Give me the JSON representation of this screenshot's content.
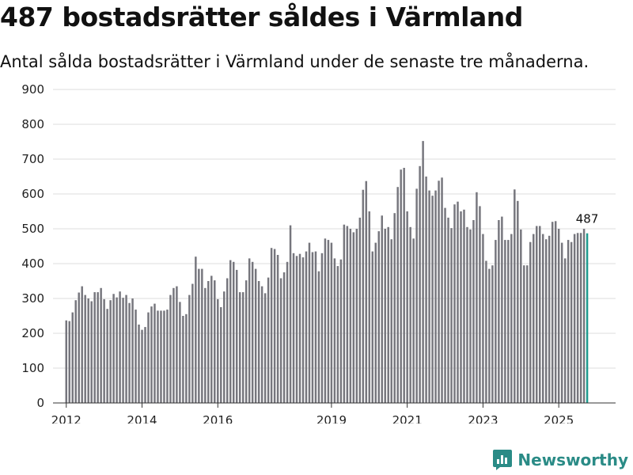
{
  "header": {
    "title": "487 bostadsrätter såldes i Värmland",
    "subtitle": "Antal sålda bostadsrätter i Värmland under de senaste tre månaderna."
  },
  "brand": {
    "name": "Newsworthy",
    "color": "#2a8b86"
  },
  "colors": {
    "bar": "#76767d",
    "highlight": "#1e9a8e",
    "grid": "#dddddd",
    "axis": "#333333"
  },
  "chart_data": {
    "type": "bar",
    "title": "487 bostadsrätter såldes i Värmland",
    "subtitle": "Antal sålda bostadsrätter i Värmland under de senaste tre månaderna.",
    "xlabel": "",
    "ylabel": "",
    "ylim": [
      0,
      900
    ],
    "yticks": [
      0,
      100,
      200,
      300,
      400,
      500,
      600,
      700,
      800,
      900
    ],
    "grid": true,
    "x_start": 2012.0,
    "step": 0.0833333,
    "xlim": [
      2011.65,
      2026.5
    ],
    "xticks": [
      2012,
      2014,
      2016,
      2019,
      2021,
      2023,
      2025
    ],
    "highlight_label": "487",
    "values": [
      237,
      235,
      260,
      295,
      317,
      335,
      310,
      300,
      292,
      318,
      318,
      330,
      298,
      270,
      295,
      313,
      303,
      320,
      302,
      310,
      287,
      300,
      268,
      225,
      210,
      218,
      260,
      277,
      285,
      265,
      265,
      265,
      268,
      310,
      330,
      335,
      290,
      250,
      255,
      310,
      342,
      420,
      385,
      385,
      330,
      350,
      365,
      352,
      298,
      275,
      320,
      358,
      410,
      405,
      382,
      318,
      318,
      352,
      415,
      405,
      385,
      350,
      335,
      315,
      360,
      445,
      442,
      425,
      358,
      375,
      405,
      510,
      430,
      422,
      428,
      418,
      435,
      460,
      433,
      435,
      378,
      430,
      472,
      468,
      460,
      415,
      393,
      412,
      512,
      508,
      500,
      490,
      500,
      532,
      612,
      637,
      550,
      435,
      460,
      493,
      538,
      500,
      505,
      470,
      545,
      620,
      670,
      675,
      550,
      505,
      472,
      615,
      680,
      752,
      650,
      610,
      595,
      610,
      638,
      647,
      560,
      532,
      502,
      570,
      578,
      550,
      555,
      505,
      498,
      525,
      605,
      565,
      485,
      408,
      385,
      395,
      468,
      525,
      535,
      468,
      468,
      485,
      613,
      580,
      498,
      395,
      395,
      462,
      485,
      508,
      508,
      485,
      470,
      480,
      520,
      522,
      500,
      460,
      415,
      468,
      462,
      485,
      488,
      488,
      500,
      487
    ]
  }
}
